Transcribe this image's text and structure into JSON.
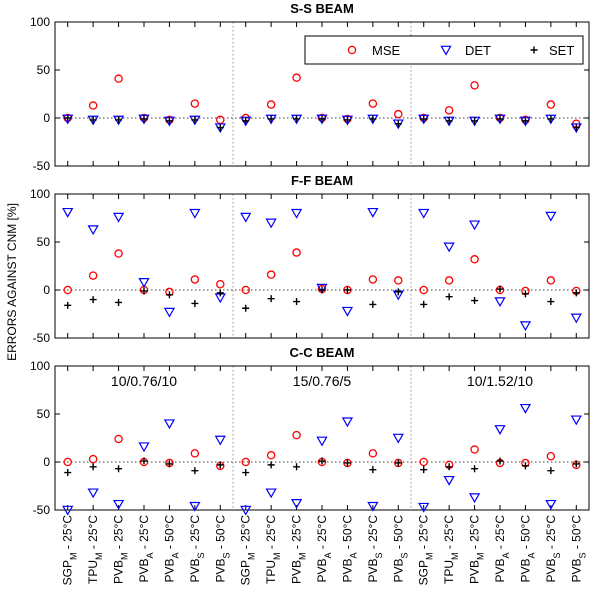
{
  "chart_data": [
    {
      "type": "scatter",
      "title": "S-S BEAM",
      "ylim": [
        -50,
        100
      ],
      "yticks": [
        "-50",
        "0",
        "50",
        "100"
      ],
      "series": [
        {
          "name": "MSE",
          "values": [
            0,
            13,
            41,
            0,
            -2,
            15,
            -2,
            0,
            14,
            42,
            0,
            -1,
            15,
            4,
            0,
            8,
            34,
            0,
            -2,
            14,
            -6
          ]
        },
        {
          "name": "DET",
          "values": [
            -1,
            -2,
            -2,
            -1,
            -3,
            -2,
            -10,
            -3,
            -1,
            -1,
            -1,
            -2,
            -1,
            -6,
            -1,
            -3,
            -3,
            -1,
            -3,
            -1,
            -10
          ]
        },
        {
          "name": "SET",
          "values": [
            0,
            -2,
            -2,
            -1,
            -3,
            -2,
            -10,
            -3,
            -1,
            -1,
            -1,
            -2,
            -1,
            -6,
            -1,
            -3,
            -3,
            -1,
            -3,
            -1,
            -10
          ]
        }
      ]
    },
    {
      "type": "scatter",
      "title": "F-F BEAM",
      "ylim": [
        -50,
        100
      ],
      "yticks": [
        "-50",
        "0",
        "50",
        "100"
      ],
      "series": [
        {
          "name": "MSE",
          "values": [
            0,
            15,
            38,
            0,
            -2,
            11,
            6,
            0,
            16,
            39,
            1,
            0,
            11,
            10,
            0,
            10,
            32,
            0,
            -1,
            10,
            -1
          ]
        },
        {
          "name": "DET",
          "values": [
            81,
            63,
            76,
            8,
            -23,
            80,
            -8,
            76,
            70,
            80,
            2,
            -22,
            81,
            -5,
            80,
            45,
            68,
            -12,
            -37,
            77,
            -29
          ]
        },
        {
          "name": "SET",
          "values": [
            -16,
            -10,
            -13,
            -1,
            -5,
            -14,
            -3,
            -19,
            -9,
            -12,
            0,
            0,
            -15,
            -2,
            -15,
            -7,
            -11,
            1,
            -4,
            -12,
            -3
          ]
        }
      ]
    },
    {
      "type": "scatter",
      "title": "C-C BEAM",
      "ylim": [
        -50,
        100
      ],
      "yticks": [
        "-50",
        "0",
        "50",
        "100"
      ],
      "annotations": [
        "10/0.76/10",
        "15/0.76/5",
        "10/1.52/10"
      ],
      "series": [
        {
          "name": "MSE",
          "values": [
            0,
            3,
            24,
            0,
            -1,
            9,
            -4,
            0,
            7,
            28,
            0,
            -1,
            9,
            -1,
            0,
            -3,
            13,
            -1,
            -1,
            6,
            -3
          ]
        },
        {
          "name": "DET",
          "values": [
            -50,
            -32,
            -44,
            16,
            40,
            -46,
            23,
            -50,
            -32,
            -43,
            22,
            42,
            -46,
            25,
            -47,
            -19,
            -37,
            34,
            56,
            -44,
            44
          ]
        },
        {
          "name": "SET",
          "values": [
            -11,
            -5,
            -7,
            1,
            -2,
            -9,
            -3,
            -11,
            -3,
            -5,
            1,
            -1,
            -8,
            -1,
            -8,
            -5,
            -7,
            1,
            -4,
            -9,
            -2
          ]
        }
      ]
    }
  ],
  "legend": {
    "items": [
      {
        "label": "MSE",
        "marker": "circle",
        "color": "#ff0000"
      },
      {
        "label": "DET",
        "marker": "triangle-down",
        "color": "#0000ff"
      },
      {
        "label": "SET",
        "marker": "plus",
        "color": "#000000"
      }
    ]
  },
  "ylabel": "ERRORS AGAINST CNM [%]",
  "xticklabels": [
    {
      "main": "SGP",
      "sub": "M",
      "temp": " - 25°C"
    },
    {
      "main": "TPU",
      "sub": "M",
      "temp": " - 25°C"
    },
    {
      "main": "PVB",
      "sub": "M",
      "temp": " - 25°C"
    },
    {
      "main": "PVB",
      "sub": "A",
      "temp": " - 25°C"
    },
    {
      "main": "PVB",
      "sub": "A",
      "temp": " - 50°C"
    },
    {
      "main": "PVB",
      "sub": "S",
      "temp": " - 25°C"
    },
    {
      "main": "PVB",
      "sub": "S",
      "temp": " - 50°C"
    },
    {
      "main": "SGP",
      "sub": "M",
      "temp": " - 25°C"
    },
    {
      "main": "TPU",
      "sub": "M",
      "temp": " - 25°C"
    },
    {
      "main": "PVB",
      "sub": "M",
      "temp": " - 25°C"
    },
    {
      "main": "PVB",
      "sub": "A",
      "temp": " - 25°C"
    },
    {
      "main": "PVB",
      "sub": "A",
      "temp": " - 50°C"
    },
    {
      "main": "PVB",
      "sub": "S",
      "temp": " - 25°C"
    },
    {
      "main": "PVB",
      "sub": "S",
      "temp": " - 50°C"
    },
    {
      "main": "SGP",
      "sub": "M",
      "temp": " - 25°C"
    },
    {
      "main": "TPU",
      "sub": "M",
      "temp": " - 25°C"
    },
    {
      "main": "PVB",
      "sub": "M",
      "temp": " - 25°C"
    },
    {
      "main": "PVB",
      "sub": "A",
      "temp": " - 25°C"
    },
    {
      "main": "PVB",
      "sub": "A",
      "temp": " - 50°C"
    },
    {
      "main": "PVB",
      "sub": "S",
      "temp": " - 25°C"
    },
    {
      "main": "PVB",
      "sub": "S",
      "temp": " - 50°C"
    }
  ]
}
